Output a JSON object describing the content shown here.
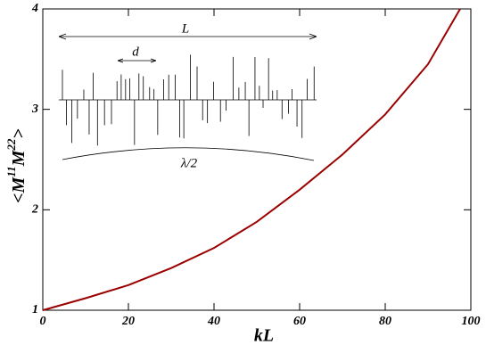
{
  "chart_data": {
    "type": "line",
    "xlabel": "kL",
    "ylabel": [
      "<M",
      "11",
      "M",
      "22",
      ">"
    ],
    "x": [
      0,
      10,
      20,
      30,
      40,
      50,
      60,
      70,
      80,
      90,
      97.5
    ],
    "series": [
      {
        "color": "#9b0000",
        "values": [
          1,
          1.12,
          1.25,
          1.42,
          1.62,
          1.88,
          2.2,
          2.55,
          2.95,
          3.45,
          4
        ]
      }
    ],
    "xlim": [
      0,
      100
    ],
    "xticks": [
      0,
      20,
      40,
      60,
      80,
      100
    ],
    "ylim": [
      1,
      4
    ],
    "yticks": [
      1,
      2,
      3,
      4
    ],
    "annotations": [
      "L",
      "d",
      "λ/2"
    ]
  }
}
